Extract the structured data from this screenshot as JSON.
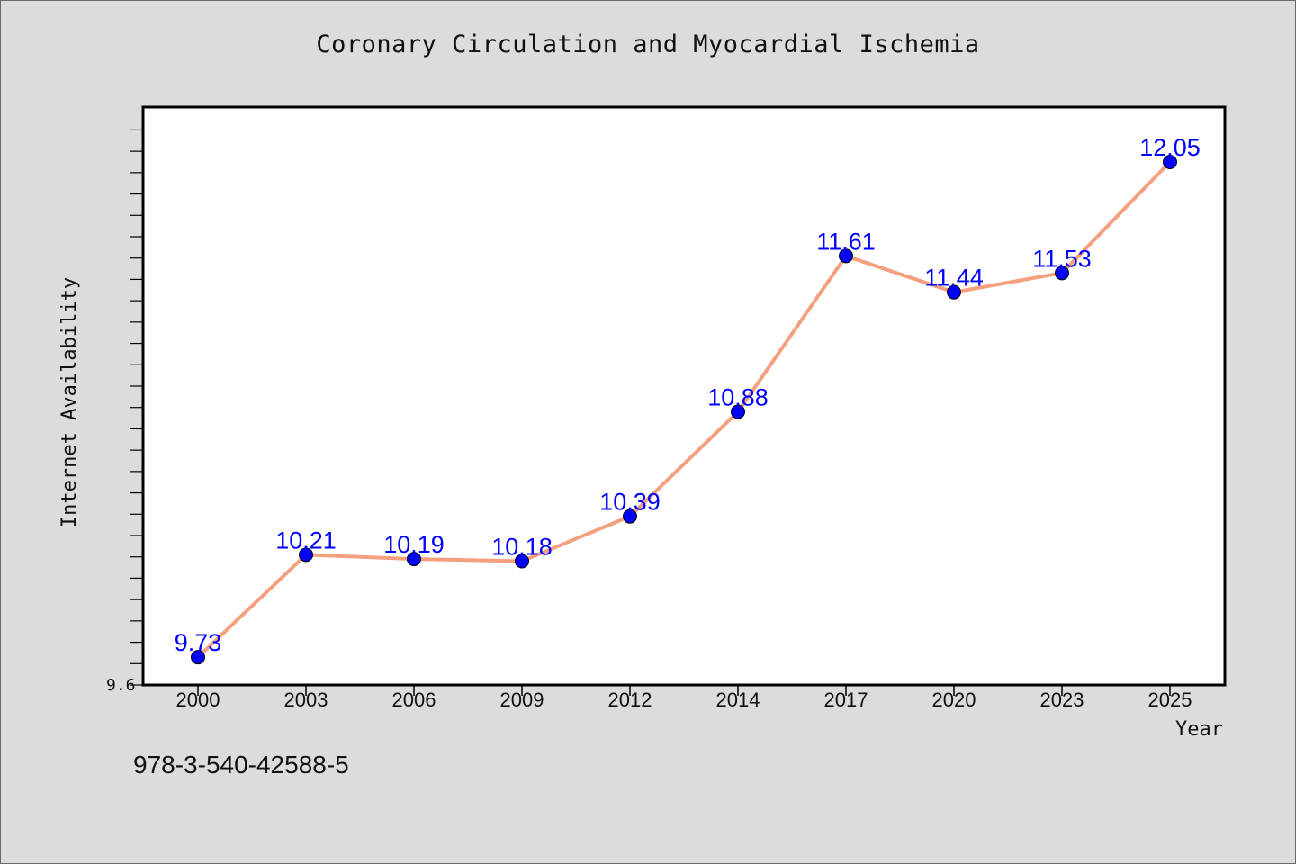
{
  "chart_data": {
    "type": "line",
    "title": "Coronary Circulation and Myocardial Ischemia",
    "xlabel": "Year",
    "ylabel": "Internet Availability",
    "categories": [
      "2000",
      "2003",
      "2006",
      "2009",
      "2012",
      "2014",
      "2017",
      "2020",
      "2023",
      "2025"
    ],
    "series": [
      {
        "values": [
          9.73,
          10.21,
          10.19,
          10.18,
          10.39,
          10.88,
          11.61,
          11.44,
          11.53,
          12.05
        ],
        "data_labels": [
          "9.73",
          "10.21",
          "10.19",
          "10.18",
          "10.39",
          "10.88",
          "11.61",
          "11.44",
          "11.53",
          "12.05"
        ]
      }
    ],
    "ylim": [
      9.6,
      12.4
    ],
    "y_min_label": "9.6",
    "grid": false,
    "legend": "none",
    "colors": {
      "line": "#f4a07f",
      "marker": "#0000ff",
      "data_label": "#0000ff",
      "plot_background": "#ffffff",
      "page_background": "#dcdcdc"
    }
  },
  "footer": {
    "isbn": "978-3-540-42588-5"
  }
}
